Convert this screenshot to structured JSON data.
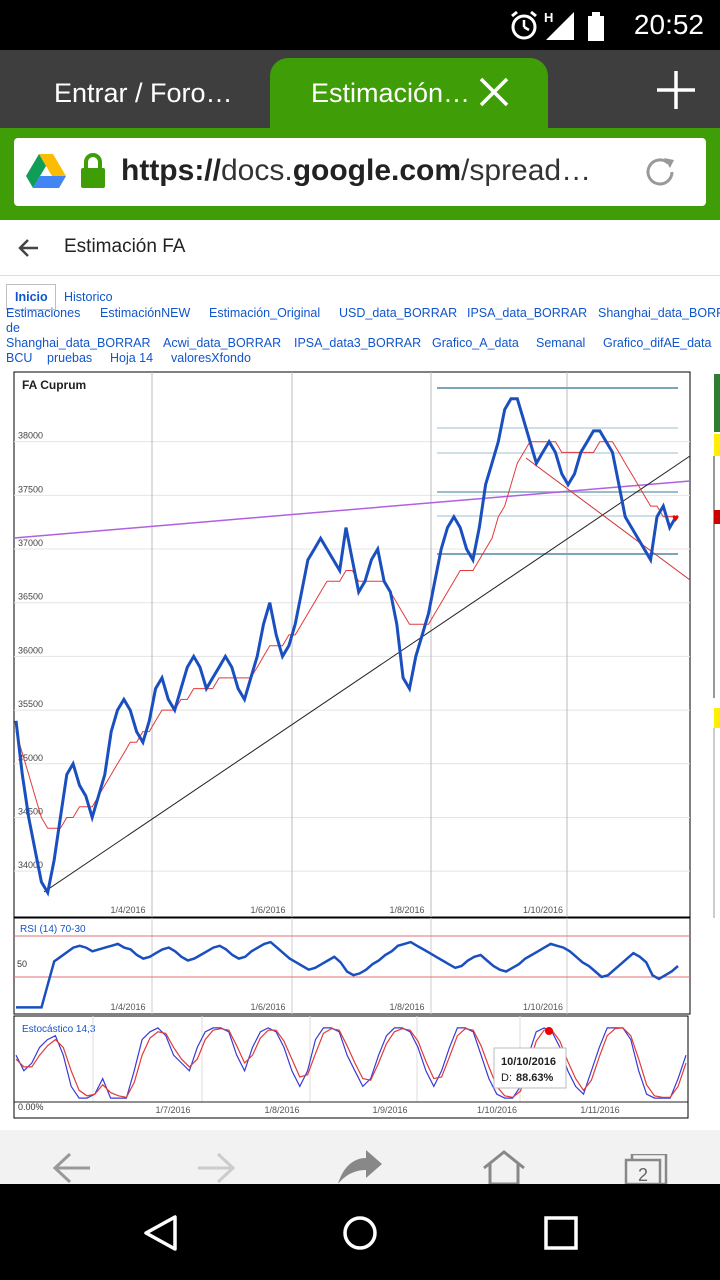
{
  "status_bar": {
    "time": "20:52",
    "network_letter": "H"
  },
  "browser": {
    "tabs": [
      {
        "label": "Entrar / Foro…",
        "active": false
      },
      {
        "label": "Estimación…",
        "active": true
      }
    ],
    "url": {
      "scheme": "https://",
      "domain_prefix": "docs.",
      "domain": "google.com",
      "path": "/spread…"
    },
    "accent_color": "#3f9e07"
  },
  "sheet": {
    "title": "Estimación FA",
    "tabs_row1": [
      "Inicio",
      "Historico"
    ],
    "tabs_row2": [
      "Estimaciones",
      "EstimaciónNEW",
      "Estimación_Original",
      "USD_data_BORRAR",
      "IPSA_data_BORRAR",
      "Shanghai_data_BORR"
    ],
    "tabs_row3_prefix": "de",
    "tabs_row4": [
      "Shanghai_data_BORRAR",
      "Acwi_data_BORRAR",
      "IPSA_data3_BORRAR",
      "Grafico_A_data",
      "Semanal",
      "Grafico_difAE_data"
    ],
    "tabs_row5": [
      "BCU",
      "pruebas",
      "Hoja 14",
      "valoresXfondo"
    ]
  },
  "chart_data": [
    {
      "type": "line",
      "title": "FA Cuprum",
      "y_ticks": [
        "38000",
        "37500",
        "37000",
        "36500",
        "36000",
        "35500",
        "35000",
        "34500",
        "34000"
      ],
      "x_ticks": [
        "1/4/2016",
        "1/6/2016",
        "1/8/2016",
        "1/10/2016"
      ],
      "ylim": [
        33750,
        38500
      ],
      "series": [
        {
          "color": "#1a4fbf",
          "values": [
            35400,
            34900,
            34500,
            34200,
            33900,
            33800,
            34100,
            34500,
            34900,
            35000,
            34800,
            34700,
            34500,
            34700,
            34900,
            35300,
            35500,
            35600,
            35500,
            35300,
            35200,
            35400,
            35700,
            35800,
            35600,
            35500,
            35700,
            35900,
            36000,
            35900,
            35700,
            35800,
            35900,
            36000,
            35900,
            35700,
            35600,
            35800,
            36000,
            36300,
            36500,
            36200,
            36000,
            36100,
            36300,
            36600,
            36900,
            37000,
            37100,
            37000,
            36900,
            36800,
            37200,
            36900,
            36600,
            36700,
            36900,
            37000,
            36700,
            36600,
            36300,
            35800,
            35700,
            36000,
            36200,
            36400,
            36700,
            37000,
            37200,
            37300,
            37200,
            37000,
            36900,
            37200,
            37600,
            37800,
            38000,
            38300,
            38400,
            38400,
            38200,
            38000,
            37800,
            37900,
            38000,
            37900,
            37700,
            37600,
            37700,
            37900,
            38000,
            38100,
            38100,
            38000,
            37900,
            37600,
            37300,
            37200,
            37100,
            37000,
            36900,
            37300,
            37400,
            37200,
            37300
          ]
        },
        {
          "color": "#e23a3a",
          "values": [
            35300,
            35100,
            34900,
            34700,
            34500,
            34400,
            34400,
            34400,
            34500,
            34500,
            34600,
            34600,
            34600,
            34700,
            34800,
            34900,
            35000,
            35100,
            35200,
            35200,
            35300,
            35300,
            35400,
            35500,
            35500,
            35500,
            35600,
            35600,
            35700,
            35700,
            35700,
            35700,
            35800,
            35800,
            35800,
            35800,
            35800,
            35800,
            35900,
            36000,
            36100,
            36100,
            36100,
            36200,
            36200,
            36300,
            36400,
            36500,
            36600,
            36700,
            36700,
            36700,
            36800,
            36800,
            36700,
            36700,
            36700,
            36700,
            36700,
            36600,
            36500,
            36400,
            36300,
            36300,
            36300,
            36300,
            36400,
            36500,
            36600,
            36700,
            36800,
            36800,
            36800,
            36900,
            37000,
            37100,
            37300,
            37400,
            37600,
            37800,
            37900,
            38000,
            38000,
            38000,
            38000,
            38000,
            37900,
            37900,
            37900,
            37900,
            37900,
            37900,
            38000,
            38000,
            38000,
            37900,
            37800,
            37700,
            37600,
            37500,
            37400,
            37400,
            37300,
            37300,
            37300
          ]
        }
      ]
    },
    {
      "type": "line",
      "title": "RSI (14) 70-30",
      "y_ticks": [
        "50"
      ],
      "x_ticks": [
        "1/4/2016",
        "1/6/2016",
        "1/8/2016",
        "1/10/2016"
      ],
      "ylim": [
        0,
        100
      ],
      "series": [
        {
          "color": "#1a4fbf",
          "values": [
            5,
            5,
            5,
            5,
            5,
            30,
            55,
            60,
            65,
            70,
            72,
            70,
            66,
            68,
            70,
            72,
            74,
            70,
            68,
            62,
            58,
            60,
            64,
            68,
            70,
            66,
            60,
            56,
            58,
            62,
            66,
            70,
            72,
            68,
            62,
            58,
            60,
            66,
            70,
            74,
            76,
            70,
            64,
            58,
            54,
            50,
            46,
            48,
            52,
            56,
            60,
            54,
            44,
            40,
            42,
            46,
            52,
            56,
            62,
            66,
            72,
            74,
            76,
            72,
            68,
            64,
            60,
            56,
            52,
            48,
            50,
            56,
            60,
            62,
            56,
            50,
            46,
            44,
            48,
            52,
            58,
            62,
            66,
            70,
            74,
            72,
            70,
            66,
            60,
            54,
            50,
            44,
            38,
            40,
            46,
            52,
            58,
            64,
            60,
            54,
            40,
            36,
            40,
            44,
            50
          ]
        }
      ]
    },
    {
      "type": "line",
      "title": "Estocástico 14,3",
      "y_ticks": [
        "0.00%"
      ],
      "x_ticks": [
        "1/7/2016",
        "1/8/2016",
        "1/9/2016",
        "1/10/2016",
        "1/11/2016"
      ],
      "ylim": [
        0,
        100
      ],
      "tooltip": {
        "date": "10/10/2016",
        "label": "D:",
        "value": "88.63%"
      },
      "series": [
        {
          "color": "#3a3ad6",
          "values": [
            60,
            40,
            50,
            70,
            80,
            85,
            60,
            20,
            5,
            5,
            10,
            30,
            5,
            5,
            5,
            40,
            80,
            90,
            95,
            85,
            60,
            50,
            40,
            70,
            90,
            95,
            95,
            90,
            60,
            40,
            70,
            90,
            95,
            90,
            70,
            40,
            20,
            40,
            80,
            95,
            95,
            90,
            60,
            40,
            20,
            30,
            60,
            85,
            95,
            95,
            90,
            70,
            40,
            20,
            40,
            70,
            95,
            95,
            90,
            60,
            30,
            10,
            5,
            5,
            20,
            60,
            90,
            95,
            90,
            70,
            40,
            20,
            10,
            40,
            70,
            95,
            95,
            95,
            80,
            40,
            10,
            5,
            5,
            5,
            30,
            60
          ]
        },
        {
          "color": "#e23a3a",
          "values": [
            55,
            45,
            45,
            60,
            72,
            80,
            70,
            40,
            15,
            8,
            10,
            22,
            12,
            8,
            6,
            25,
            60,
            82,
            90,
            88,
            70,
            55,
            45,
            55,
            80,
            92,
            94,
            92,
            72,
            50,
            60,
            82,
            92,
            92,
            78,
            55,
            32,
            35,
            62,
            88,
            94,
            92,
            72,
            50,
            30,
            28,
            50,
            75,
            90,
            94,
            92,
            78,
            52,
            30,
            32,
            58,
            85,
            94,
            92,
            72,
            45,
            20,
            8,
            6,
            14,
            45,
            78,
            92,
            92,
            78,
            52,
            30,
            15,
            28,
            58,
            85,
            94,
            95,
            85,
            55,
            22,
            8,
            6,
            6,
            20,
            50
          ]
        }
      ]
    }
  ]
}
